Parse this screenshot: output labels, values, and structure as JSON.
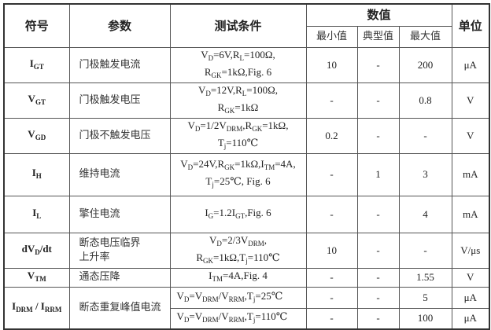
{
  "header": {
    "symbol": "符号",
    "param": "参数",
    "cond": "测试条件",
    "values": "数值",
    "min": "最小值",
    "typ": "典型值",
    "max": "最大值",
    "unit": "单位"
  },
  "rows": [
    {
      "sym": "I<sub>GT</sub>",
      "param": "门极触发电流",
      "cond": "V<sub>D</sub>=6V,R<sub>L</sub>=100Ω,<br>R<sub>GK</sub>=1kΩ,Fig. 6",
      "min": "10",
      "typ": "-",
      "max": "200",
      "unit": "μA"
    },
    {
      "sym": "V<sub>GT</sub>",
      "param": "门极触发电压",
      "cond": "V<sub>D</sub>=12V,R<sub>L</sub>=100Ω,<br>R<sub>GK</sub>=1kΩ",
      "min": "-",
      "typ": "-",
      "max": "0.8",
      "unit": "V"
    },
    {
      "sym": "V<sub>GD</sub>",
      "param": "门极不触发电压",
      "cond": "V<sub>D</sub>=1/2V<sub>DRM</sub>,R<sub>GK</sub>=1kΩ,<br>T<sub>j</sub>=110℃",
      "min": "0.2",
      "typ": "-",
      "max": "-",
      "unit": "V"
    },
    {
      "sym": "I<sub>H</sub>",
      "param": "维持电流",
      "cond": "V<sub>D</sub>=24V,R<sub>GK</sub>=1kΩ,I<sub>TM</sub>=4A,<br>T<sub>j</sub>=25℃, Fig. 6",
      "min": "-",
      "typ": "1",
      "max": "3",
      "unit": "mA"
    },
    {
      "sym": "I<sub>L</sub>",
      "param": "擎住电流",
      "cond": "I<sub>G</sub>=1.2I<sub>GT</sub>,Fig. 6",
      "min": "-",
      "typ": "-",
      "max": "4",
      "unit": "mA"
    },
    {
      "sym": "dV<sub>D</sub>/dt",
      "param": "断态电压临界<br>上升率",
      "cond": "V<sub>D</sub>=2/3V<sub>DRM</sub>,<br>R<sub>GK</sub>=1kΩ,T<sub>j</sub>=110℃",
      "min": "10",
      "typ": "-",
      "max": "-",
      "unit": "V/μs"
    },
    {
      "sym": "V<sub>TM</sub>",
      "param": "通态压降",
      "cond": "I<sub>TM</sub>=4A,Fig. 4",
      "min": "-",
      "typ": "-",
      "max": "1.55",
      "unit": "V"
    }
  ],
  "idrm": {
    "sym": "I<sub>DRM</sub> / I<sub>RRM</sub>",
    "param": "断态重复峰值电流",
    "sub": [
      {
        "cond": "V<sub>D</sub>=V<sub>DRM</sub>/V<sub>RRM</sub>,T<sub>j</sub>=25℃",
        "min": "-",
        "typ": "-",
        "max": "5",
        "unit": "μA"
      },
      {
        "cond": "V<sub>D</sub>=V<sub>DRM</sub>/V<sub>RRM</sub>,T<sub>j</sub>=110℃",
        "min": "-",
        "typ": "-",
        "max": "100",
        "unit": "μA"
      }
    ]
  }
}
